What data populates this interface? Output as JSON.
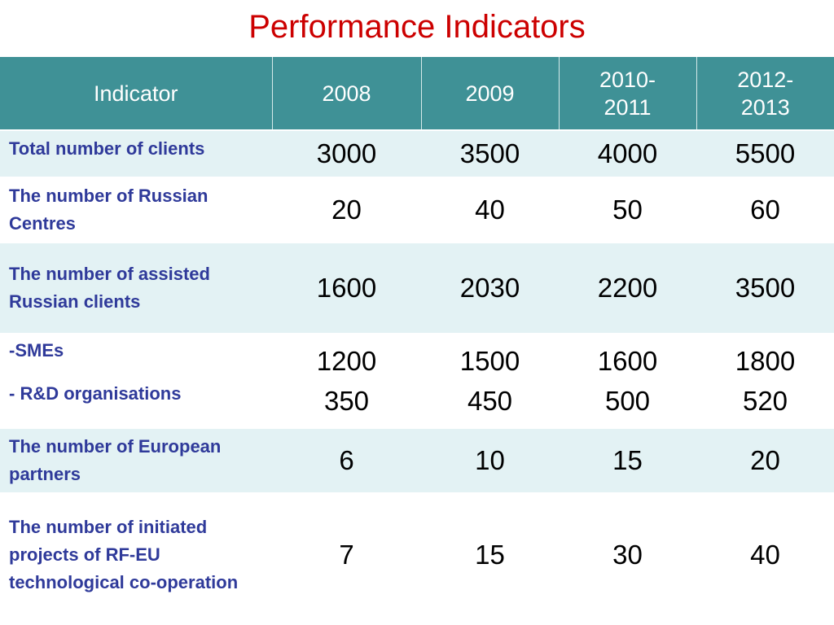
{
  "title": "Performance Indicators",
  "table": {
    "headers": [
      "Indicator",
      "2008",
      "2009",
      "2010-\n2011",
      "2012-\n2013"
    ],
    "rows": [
      {
        "label": "Total number of clients",
        "values": [
          "3000",
          "3500",
          "4000",
          "5500"
        ]
      },
      {
        "label": "The number of Russian Centres",
        "values": [
          "20",
          "40",
          "50",
          "60"
        ]
      },
      {
        "label": "The number of assisted Russian clients",
        "values": [
          "1600",
          "2030",
          "2200",
          "3500"
        ]
      },
      {
        "label": "-SMEs",
        "values": [
          "1200",
          "1500",
          "1600",
          "1800"
        ]
      },
      {
        "label": "- R&D organisations",
        "values": [
          "350",
          "450",
          "500",
          "520"
        ]
      },
      {
        "label": "The number of European partners",
        "values": [
          "6",
          "10",
          "15",
          "20"
        ]
      },
      {
        "label": "The number of initiated projects of RF-EU technological co-operation",
        "values": [
          "7",
          "15",
          "30",
          "40"
        ]
      }
    ]
  },
  "colors": {
    "title": "#cc0000",
    "header_bg": "#3f9196",
    "header_text": "#ffffff",
    "row_shade": "#e3f2f4",
    "label_text": "#2f3a9a"
  }
}
